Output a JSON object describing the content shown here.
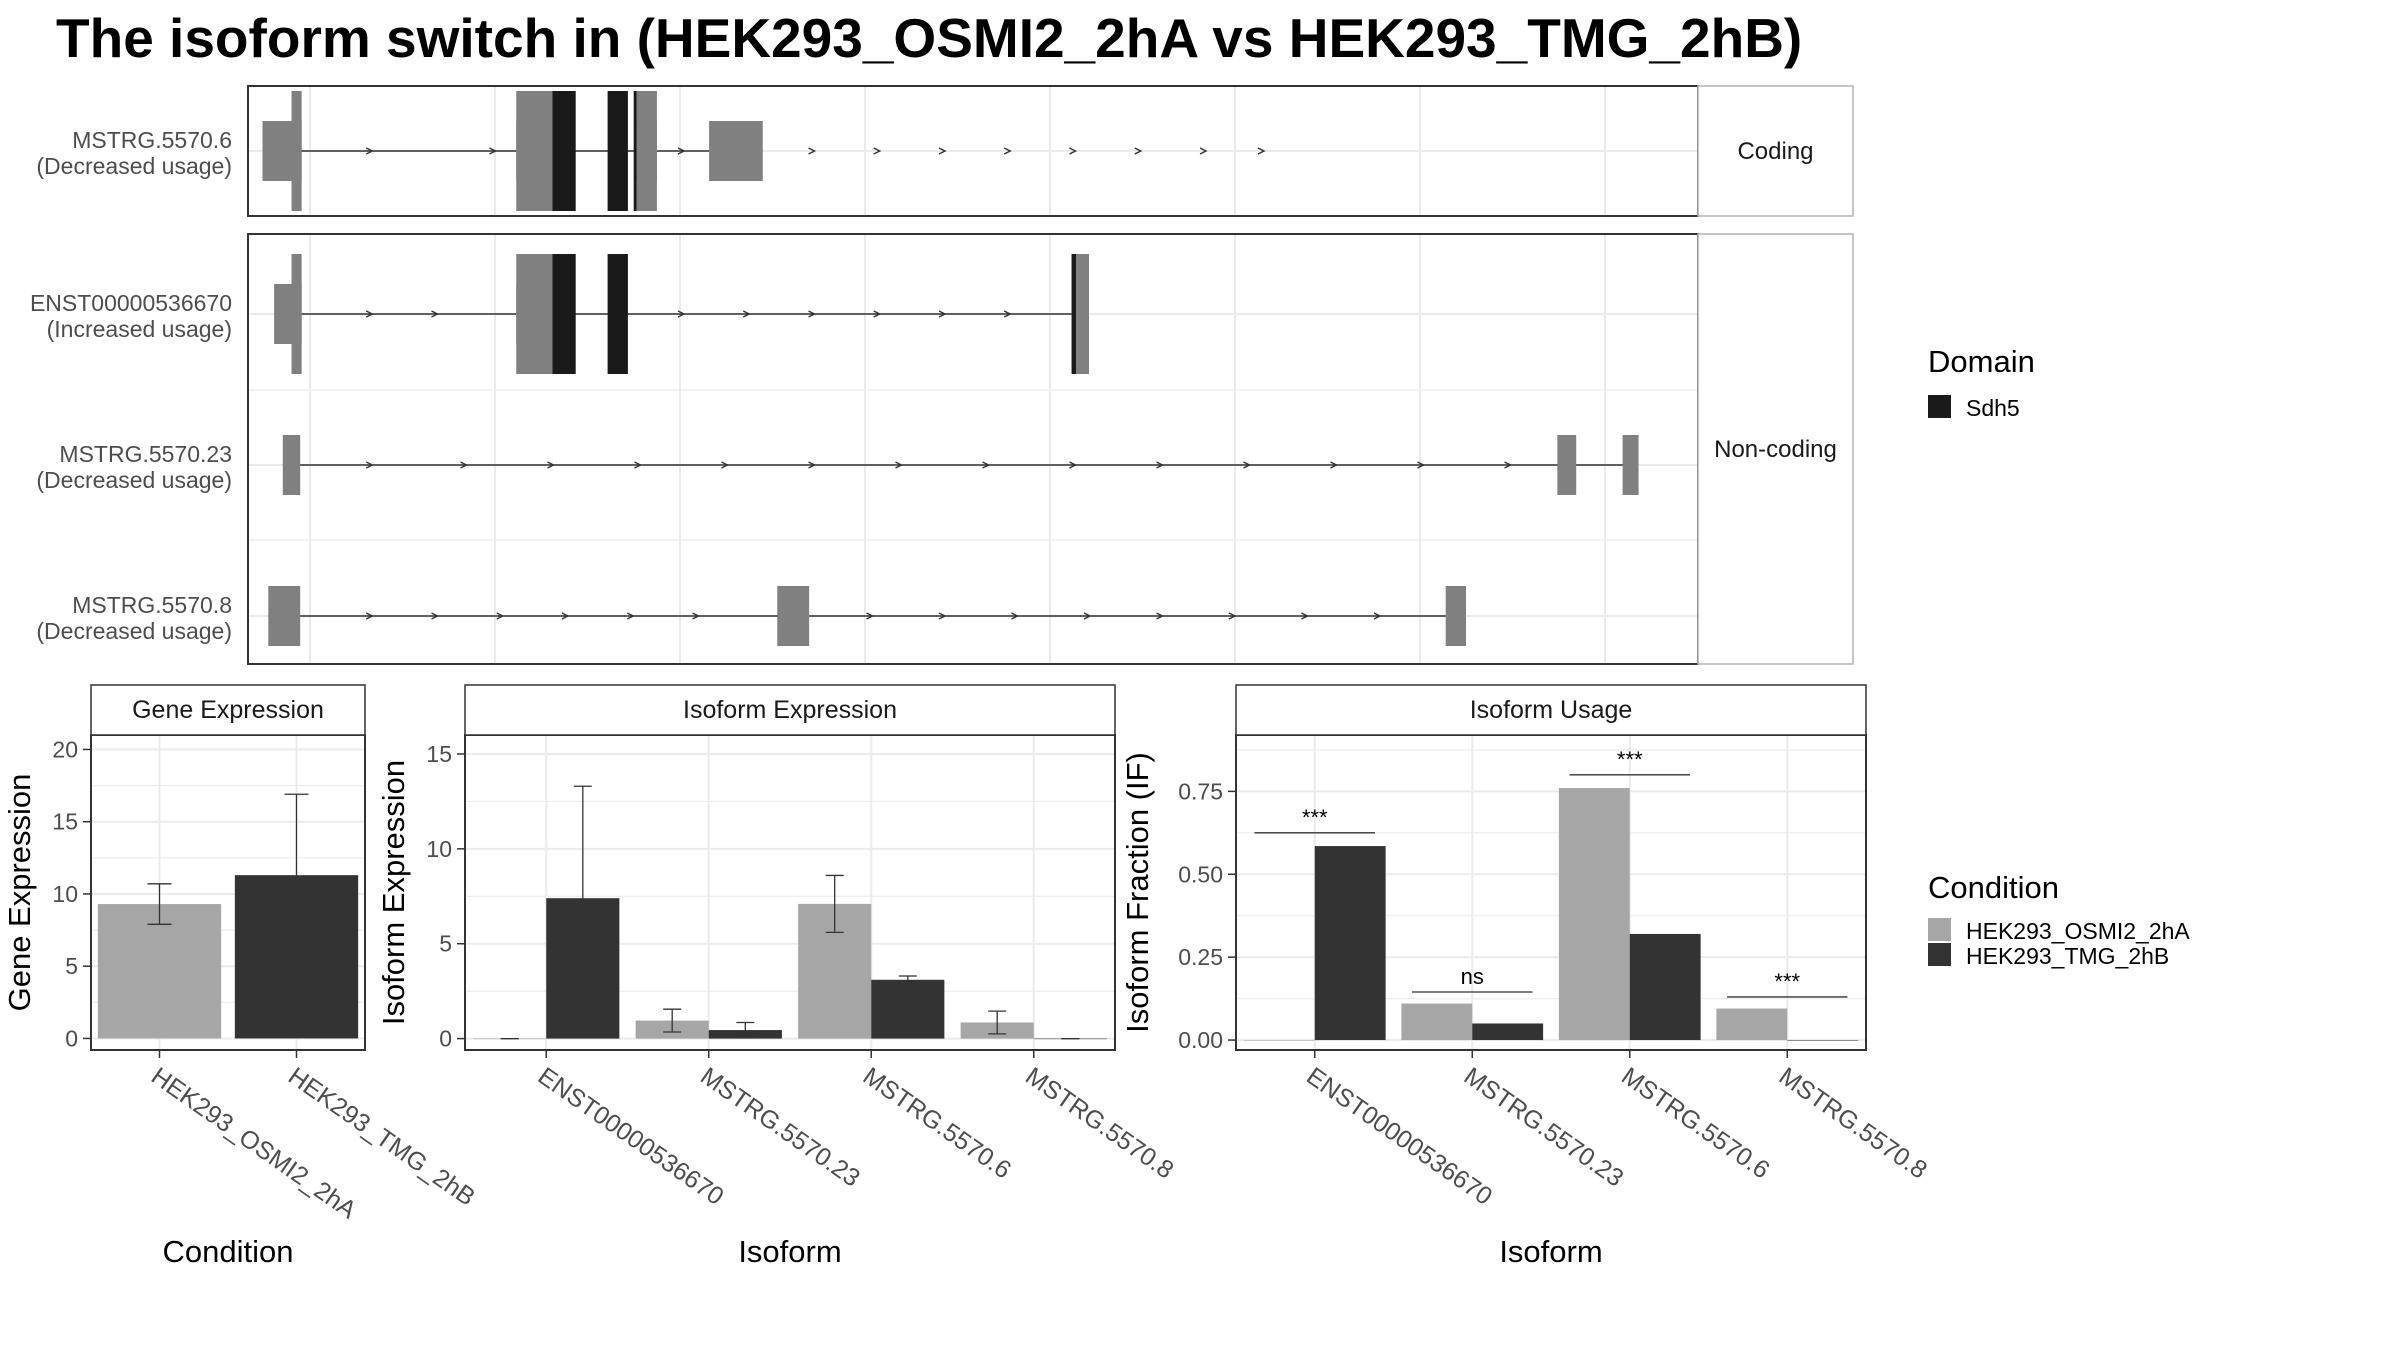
{
  "title": "The isoform switch in  (HEK293_OSMI2_2hA vs HEK293_TMG_2hB)",
  "colors": {
    "exon": "#808080",
    "domain": "#1a1a1a",
    "cond_a": "#a6a6a6",
    "cond_b": "#333333",
    "grid": "#ebebeb",
    "strip_bg": "#ffffff",
    "panel_border": "#333333"
  },
  "transcript_panel": {
    "x_range": [
      0,
      1000
    ],
    "facets": [
      {
        "label": "Coding",
        "transcripts": [
          {
            "name": "MSTRG.5570.6",
            "usage": "(Decreased usage)",
            "utr_exons": [
              [
                10,
                37
              ],
              [
                185,
                210
              ],
              [
                268,
                282
              ],
              [
                318,
                355
              ]
            ],
            "cds_exons": [
              [
                30,
                37
              ],
              [
                185,
                210
              ],
              [
                268,
                282
              ]
            ],
            "domain_segments": [
              [
                210,
                226
              ],
              [
                248,
                262
              ],
              [
                266,
                268
              ]
            ],
            "arrows": [
              85,
              170,
              300,
              345,
              390,
              435,
              480,
              525,
              570,
              615,
              660,
              700
            ]
          }
        ]
      },
      {
        "label": "Non-coding",
        "transcripts": [
          {
            "name": "ENST00000536670",
            "usage": "(Increased usage)",
            "utr_exons": [
              [
                18,
                37
              ],
              [
                185,
                210
              ],
              [
                568,
                580
              ]
            ],
            "cds_exons": [
              [
                30,
                37
              ],
              [
                185,
                210
              ],
              [
                568,
                580
              ]
            ],
            "domain_segments": [
              [
                210,
                226
              ],
              [
                248,
                262
              ],
              [
                568,
                571
              ]
            ],
            "arrows": [
              85,
              130,
              300,
              345,
              390,
              435,
              480,
              525
            ]
          },
          {
            "name": "MSTRG.5570.23",
            "usage": "(Decreased usage)",
            "utr_exons": [
              [
                24,
                36
              ],
              [
                903,
                916
              ],
              [
                948,
                959
              ]
            ],
            "cds_exons": [],
            "domain_segments": [],
            "arrows": [
              85,
              150,
              210,
              270,
              330,
              390,
              450,
              510,
              570,
              630,
              690,
              750,
              810,
              870
            ]
          },
          {
            "name": "MSTRG.5570.8",
            "usage": "(Decreased usage)",
            "utr_exons": [
              [
                14,
                36
              ],
              [
                365,
                387
              ],
              [
                826,
                840
              ]
            ],
            "cds_exons": [],
            "domain_segments": [],
            "arrows": [
              85,
              130,
              175,
              220,
              265,
              310,
              430,
              480,
              530,
              580,
              630,
              680,
              730,
              780
            ]
          }
        ]
      }
    ],
    "legend": {
      "title": "Domain",
      "items": [
        "Sdh5"
      ]
    }
  },
  "chart_data": [
    {
      "type": "bar",
      "title": "Gene Expression",
      "xlabel": "Condition",
      "ylabel": "Gene Expression",
      "categories": [
        "HEK293_OSMI2_2hA",
        "HEK293_TMG_2hB"
      ],
      "values": [
        9.3,
        11.3
      ],
      "error_low": [
        7.9,
        5.8
      ],
      "error_high": [
        10.7,
        16.9
      ],
      "ylim": [
        -0.8,
        21
      ],
      "yticks": [
        0,
        5,
        10,
        15,
        20
      ],
      "grid": true
    },
    {
      "type": "bar",
      "title": "Isoform Expression",
      "xlabel": "Isoform",
      "ylabel": "Isoform Expression",
      "categories": [
        "ENST00000536670",
        "MSTRG.5570.23",
        "MSTRG.5570.6",
        "MSTRG.5570.8"
      ],
      "series": [
        {
          "name": "HEK293_OSMI2_2hA",
          "values": [
            0.0,
            0.95,
            7.1,
            0.85
          ],
          "error_low": [
            0.0,
            0.35,
            5.6,
            0.25
          ],
          "error_high": [
            0.0,
            1.55,
            8.6,
            1.45
          ]
        },
        {
          "name": "HEK293_TMG_2hB",
          "values": [
            7.4,
            0.45,
            3.1,
            0.0
          ],
          "error_low": [
            1.5,
            0.05,
            2.9,
            0.0
          ],
          "error_high": [
            13.3,
            0.85,
            3.3,
            0.0
          ]
        }
      ],
      "ylim": [
        -0.6,
        16.0
      ],
      "yticks": [
        0,
        5,
        10,
        15
      ],
      "grid": true
    },
    {
      "type": "bar",
      "title": "Isoform Usage",
      "xlabel": "Isoform",
      "ylabel": "Isoform Fraction (IF)",
      "categories": [
        "ENST00000536670",
        "MSTRG.5570.23",
        "MSTRG.5570.6",
        "MSTRG.5570.8"
      ],
      "series": [
        {
          "name": "HEK293_OSMI2_2hA",
          "values": [
            0.0,
            0.11,
            0.76,
            0.095
          ]
        },
        {
          "name": "HEK293_TMG_2hB",
          "values": [
            0.585,
            0.05,
            0.32,
            0.0
          ]
        }
      ],
      "significance": [
        "***",
        "ns",
        "***",
        "***"
      ],
      "sig_level": [
        0.625,
        0.145,
        0.8,
        0.13
      ],
      "ylim": [
        -0.03,
        0.92
      ],
      "yticks": [
        0,
        0.25,
        0.5,
        0.75
      ],
      "ytick_labels": [
        "0.00",
        "0.25",
        "0.50",
        "0.75"
      ],
      "grid": true
    }
  ],
  "condition_legend": {
    "title": "Condition",
    "items": [
      "HEK293_OSMI2_2hA",
      "HEK293_TMG_2hB"
    ]
  }
}
